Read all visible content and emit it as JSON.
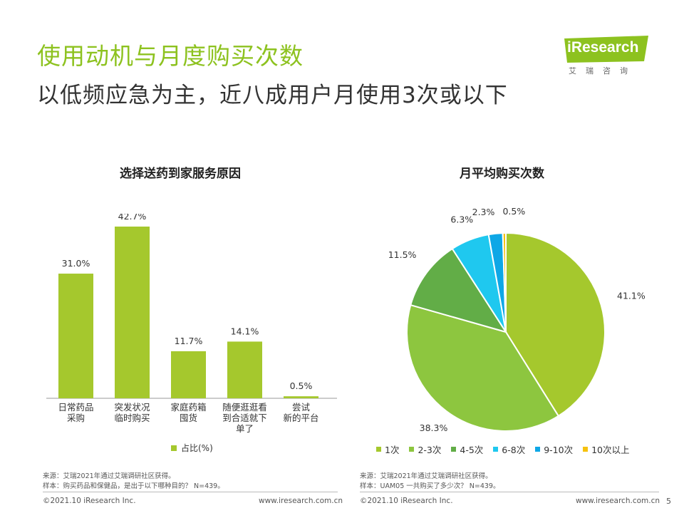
{
  "header": {
    "title": "使用动机与月度购买次数",
    "subtitle": "以低频应急为主，近八成用户月使用3次或以下"
  },
  "logo": {
    "text": "iResearch",
    "cn": "艾瑞咨询"
  },
  "colors": {
    "accent": "#8dc21f",
    "bar": "#a5c82d",
    "logo_bg": "#8dc21f"
  },
  "chart_data": [
    {
      "type": "bar",
      "title": "选择送药到家服务原因",
      "categories": [
        "日常药品\n采购",
        "突发状况\n临时购买",
        "家庭药箱\n囤货",
        "随便逛逛看\n到合适就下\n单了",
        "尝试\n新的平台"
      ],
      "series": [
        {
          "name": "占比(%)",
          "values": [
            31.0,
            42.7,
            11.7,
            14.1,
            0.5
          ]
        }
      ],
      "value_labels": [
        "31.0%",
        "42.7%",
        "11.7%",
        "14.1%",
        "0.5%"
      ],
      "ylim": [
        0,
        50
      ],
      "grid": false,
      "legend": "bottom"
    },
    {
      "type": "pie",
      "title": "月平均购买次数",
      "labels": [
        "1次",
        "2-3次",
        "4-5次",
        "6-8次",
        "9-10次",
        "10次以上"
      ],
      "values": [
        41.1,
        38.3,
        11.5,
        6.3,
        2.3,
        0.5
      ],
      "value_labels": [
        "41.1%",
        "38.3%",
        "11.5%",
        "6.3%",
        "2.3%",
        "0.5%"
      ],
      "colors": [
        "#a5c82d",
        "#8dc63f",
        "#62ad47",
        "#1fc8ef",
        "#0ea7e6",
        "#f6c20f"
      ],
      "legend": "bottom"
    }
  ],
  "footnotes": {
    "left": [
      "来源：艾瑞2021年通过艾瑞调研社区获得。",
      "样本：购买药品和保健品，是出于以下哪种目的？ N=439。"
    ],
    "right": [
      "来源：艾瑞2021年通过艾瑞调研社区获得。",
      "样本：UAM05 一共购买了多少次？ N=439。"
    ]
  },
  "footer": {
    "left_copyright": "©2021.10 iResearch Inc.",
    "left_url": "www.iresearch.com.cn",
    "right_copyright": "©2021.10 iResearch Inc.",
    "right_url": "www.iresearch.com.cn",
    "page": "5"
  }
}
